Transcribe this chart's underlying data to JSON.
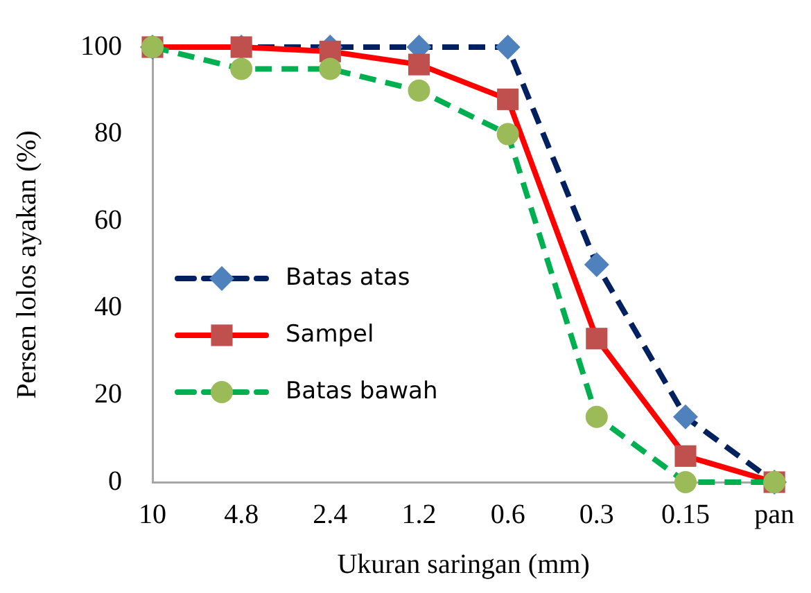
{
  "chart_data": {
    "type": "line",
    "xlabel": "Ukuran saringan (mm)",
    "ylabel": "Persen lolos ayakan (%)",
    "categories": [
      "10",
      "4.8",
      "2.4",
      "1.2",
      "0.6",
      "0.3",
      "0.15",
      "pan"
    ],
    "ylim": [
      0,
      100
    ],
    "yticks": [
      0,
      20,
      40,
      60,
      80,
      100
    ],
    "grid": false,
    "legend": "center left",
    "series": [
      {
        "name": "Batas atas",
        "color": "#002060",
        "colors": [
          "#4f81bd",
          "#4f81bd",
          "#4f81bd",
          "#4f81bd",
          "#4f81bd",
          "#4f81bd",
          "#4f81bd",
          "#4f81bd"
        ],
        "marker": "diamond",
        "line_style": "dashed",
        "values": [
          100,
          100,
          100,
          100,
          100,
          50,
          15,
          0
        ]
      },
      {
        "name": "Sampel",
        "color": "#ff0000",
        "colors": [
          "#c0504d",
          "#c0504d",
          "#c0504d",
          "#c0504d",
          "#c0504d",
          "#c0504d",
          "#c0504d",
          "#c0504d"
        ],
        "marker": "square",
        "line_style": "solid",
        "values": [
          100,
          100,
          99,
          96,
          88,
          33,
          6,
          0
        ]
      },
      {
        "name": "Batas bawah",
        "color": "#00b050",
        "colors": [
          "#9bbb59",
          "#9bbb59",
          "#9bbb59",
          "#9bbb59",
          "#9bbb59",
          "#9bbb59",
          "#9bbb59",
          "#9bbb59"
        ],
        "marker": "circle",
        "line_style": "dashed",
        "values": [
          100,
          95,
          95,
          90,
          80,
          15,
          0,
          0
        ]
      }
    ]
  }
}
